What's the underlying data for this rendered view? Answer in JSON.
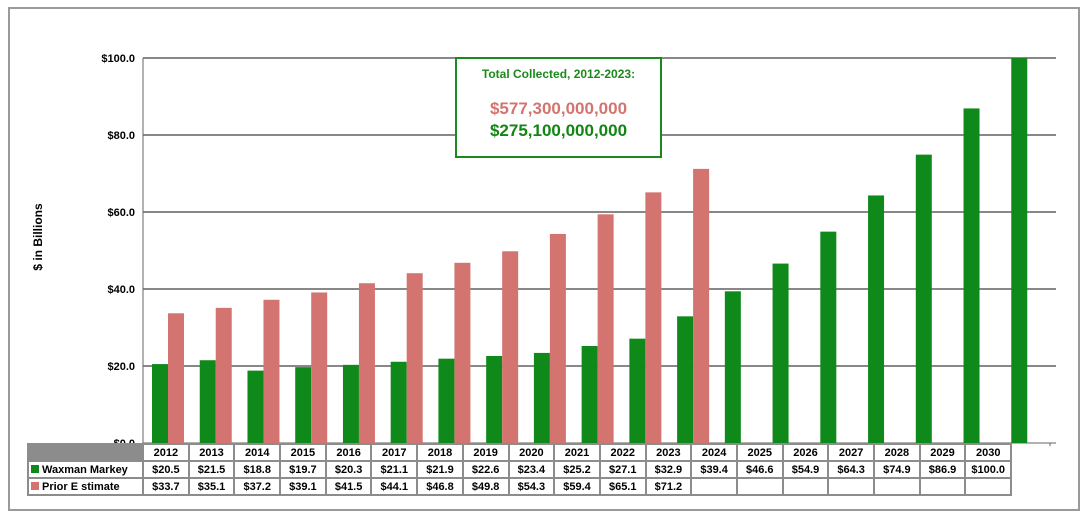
{
  "chart_data": {
    "type": "bar",
    "title": "",
    "ylabel": "$ in Billions",
    "ylim": [
      0,
      100
    ],
    "yticks": [
      "$0.0",
      "$20.0",
      "$40.0",
      "$60.0",
      "$80.0",
      "$100.0"
    ],
    "categories": [
      "2012",
      "2013",
      "2014",
      "2015",
      "2016",
      "2017",
      "2018",
      "2019",
      "2020",
      "2021",
      "2022",
      "2023",
      "2024",
      "2025",
      "2026",
      "2027",
      "2028",
      "2029",
      "2030"
    ],
    "series": [
      {
        "name": "Waxman Markey",
        "color": "#0f8a1a",
        "values": [
          20.5,
          21.5,
          18.8,
          19.7,
          20.3,
          21.1,
          21.9,
          22.6,
          23.4,
          25.2,
          27.1,
          32.9,
          39.4,
          46.6,
          54.9,
          64.3,
          74.9,
          86.9,
          100.0
        ],
        "labels": [
          "$20.5",
          "$21.5",
          "$18.8",
          "$19.7",
          "$20.3",
          "$21.1",
          "$21.9",
          "$22.6",
          "$23.4",
          "$25.2",
          "$27.1",
          "$32.9",
          "$39.4",
          "$46.6",
          "$54.9",
          "$64.3",
          "$74.9",
          "$86.9",
          "$100.0"
        ]
      },
      {
        "name": "Prior Estimate",
        "color": "#d47470",
        "values": [
          33.7,
          35.1,
          37.2,
          39.1,
          41.5,
          44.1,
          46.8,
          49.8,
          54.3,
          59.4,
          65.1,
          71.2,
          null,
          null,
          null,
          null,
          null,
          null,
          null
        ],
        "labels": [
          "$33.7",
          "$35.1",
          "$37.2",
          "$39.1",
          "$41.5",
          "$44.1",
          "$46.8",
          "$49.8",
          "$54.3",
          "$59.4",
          "$65.1",
          "$71.2",
          "",
          "",
          "",
          "",
          "",
          "",
          ""
        ]
      }
    ],
    "annotation": {
      "title": "Total Collected, 2012-2023:",
      "prior_total": "$577,300,000,000",
      "waxman_total": "$275,100,000,000"
    },
    "table_labels": [
      "Waxman Markey",
      "Prior E stimate"
    ]
  }
}
